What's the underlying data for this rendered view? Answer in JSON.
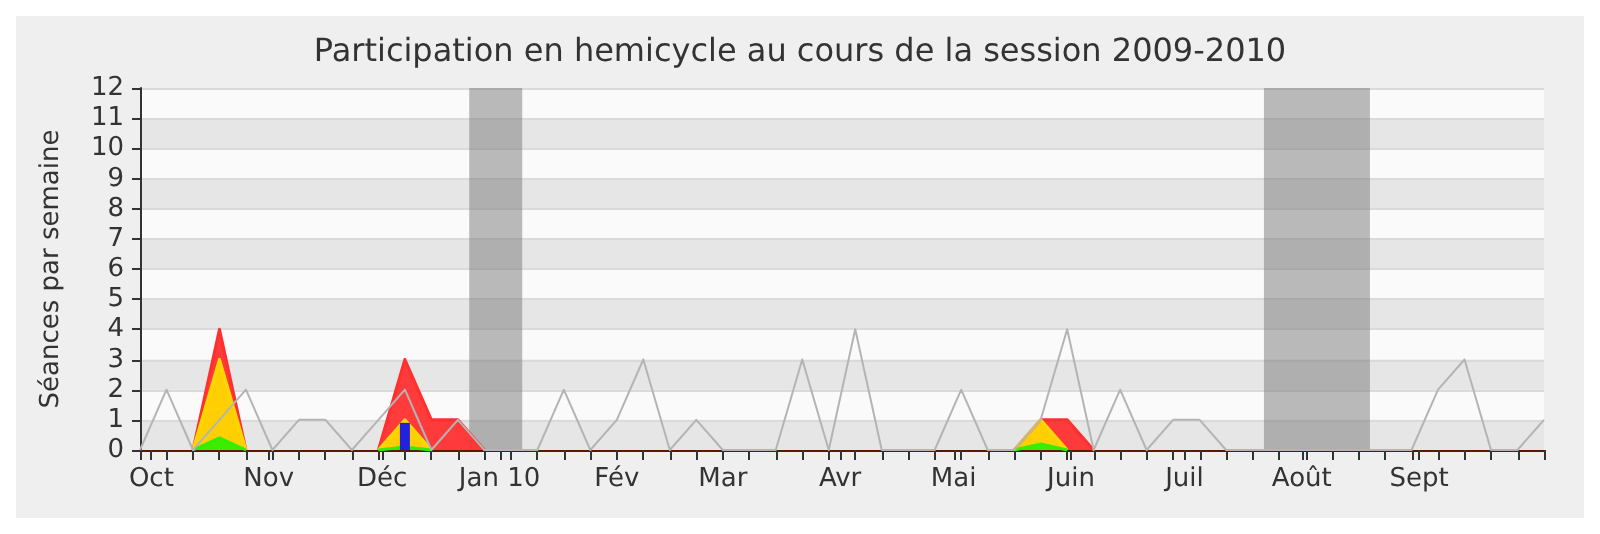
{
  "chart_data": {
    "type": "area",
    "title": "Participation en hemicycle au cours de la session 2009-2010",
    "ylabel": "Séances par semaine",
    "x": [
      "2009-09-28",
      "2009-10-05",
      "2009-10-12",
      "2009-10-19",
      "2009-10-26",
      "2009-11-02",
      "2009-11-09",
      "2009-11-16",
      "2009-11-23",
      "2009-11-30",
      "2009-12-07",
      "2009-12-14",
      "2009-12-21",
      "2009-12-28",
      "2010-01-04",
      "2010-01-11",
      "2010-01-18",
      "2010-01-25",
      "2010-02-01",
      "2010-02-08",
      "2010-02-15",
      "2010-02-22",
      "2010-03-01",
      "2010-03-08",
      "2010-03-15",
      "2010-03-22",
      "2010-03-29",
      "2010-04-05",
      "2010-04-12",
      "2010-04-19",
      "2010-04-26",
      "2010-05-03",
      "2010-05-10",
      "2010-05-17",
      "2010-05-24",
      "2010-05-31",
      "2010-06-07",
      "2010-06-14",
      "2010-06-21",
      "2010-06-28",
      "2010-07-05",
      "2010-07-12",
      "2010-07-19",
      "2010-07-26",
      "2010-08-02",
      "2010-08-09",
      "2010-08-16",
      "2010-08-23",
      "2010-08-30",
      "2010-09-06",
      "2010-09-13",
      "2010-09-20",
      "2010-09-27",
      "2010-10-04"
    ],
    "xlim": [
      "2009-09-28",
      "2010-10-04"
    ],
    "xticks": [
      {
        "value": "2009-09-28",
        "label": null
      },
      {
        "value": "2009-10-05",
        "label": null
      },
      {
        "value": "2009-10-12",
        "label": null
      },
      {
        "value": "2009-10-19",
        "label": null
      },
      {
        "value": "2009-10-26",
        "label": null
      },
      {
        "value": "2009-11-02",
        "label": null
      },
      {
        "value": "2009-11-09",
        "label": null
      },
      {
        "value": "2009-11-16",
        "label": null
      },
      {
        "value": "2009-11-23",
        "label": null
      },
      {
        "value": "2009-11-30",
        "label": null
      },
      {
        "value": "2009-12-07",
        "label": null
      },
      {
        "value": "2009-12-14",
        "label": null
      },
      {
        "value": "2009-12-21",
        "label": null
      },
      {
        "value": "2009-12-28",
        "label": null
      },
      {
        "value": "2010-01-04",
        "label": null
      },
      {
        "value": "2010-01-11",
        "label": null
      },
      {
        "value": "2010-01-18",
        "label": null
      },
      {
        "value": "2010-01-25",
        "label": null
      },
      {
        "value": "2010-02-01",
        "label": null
      },
      {
        "value": "2010-02-08",
        "label": null
      },
      {
        "value": "2010-02-15",
        "label": null
      },
      {
        "value": "2010-02-22",
        "label": null
      },
      {
        "value": "2010-03-01",
        "label": null
      },
      {
        "value": "2010-03-08",
        "label": null
      },
      {
        "value": "2010-03-15",
        "label": null
      },
      {
        "value": "2010-03-22",
        "label": null
      },
      {
        "value": "2010-03-29",
        "label": null
      },
      {
        "value": "2010-04-05",
        "label": null
      },
      {
        "value": "2010-04-12",
        "label": null
      },
      {
        "value": "2010-04-19",
        "label": null
      },
      {
        "value": "2010-04-26",
        "label": null
      },
      {
        "value": "2010-05-03",
        "label": null
      },
      {
        "value": "2010-05-10",
        "label": null
      },
      {
        "value": "2010-05-17",
        "label": null
      },
      {
        "value": "2010-05-24",
        "label": null
      },
      {
        "value": "2010-05-31",
        "label": null
      },
      {
        "value": "2010-06-07",
        "label": null
      },
      {
        "value": "2010-06-14",
        "label": null
      },
      {
        "value": "2010-06-21",
        "label": null
      },
      {
        "value": "2010-06-28",
        "label": null
      },
      {
        "value": "2010-07-05",
        "label": null
      },
      {
        "value": "2010-07-12",
        "label": null
      },
      {
        "value": "2010-07-19",
        "label": null
      },
      {
        "value": "2010-07-26",
        "label": null
      },
      {
        "value": "2010-08-02",
        "label": null
      },
      {
        "value": "2010-08-09",
        "label": null
      },
      {
        "value": "2010-08-16",
        "label": null
      },
      {
        "value": "2010-08-23",
        "label": null
      },
      {
        "value": "2010-08-30",
        "label": null
      },
      {
        "value": "2010-09-06",
        "label": null
      },
      {
        "value": "2010-09-13",
        "label": null
      },
      {
        "value": "2010-09-20",
        "label": null
      },
      {
        "value": "2010-09-27",
        "label": null
      },
      {
        "value": "2010-10-04",
        "label": null
      },
      {
        "value": "2009-10-01",
        "label": "Oct"
      },
      {
        "value": "2009-11-01",
        "label": "Nov"
      },
      {
        "value": "2009-12-01",
        "label": "Déc"
      },
      {
        "value": "2010-01-01",
        "label": "Jan 10"
      },
      {
        "value": "2010-02-01",
        "label": "Fév"
      },
      {
        "value": "2010-03-01",
        "label": "Mar"
      },
      {
        "value": "2010-04-01",
        "label": "Avr"
      },
      {
        "value": "2010-05-01",
        "label": "Mai"
      },
      {
        "value": "2010-06-01",
        "label": "Juin"
      },
      {
        "value": "2010-07-01",
        "label": "Juil"
      },
      {
        "value": "2010-08-01",
        "label": "Août"
      },
      {
        "value": "2010-09-01",
        "label": "Sept"
      }
    ],
    "ylim": [
      0,
      12
    ],
    "yticks": [
      0,
      1,
      2,
      3,
      4,
      5,
      6,
      7,
      8,
      9,
      10,
      11,
      12
    ],
    "grid": "y",
    "marker": "none",
    "bands": [
      {
        "axis": "x",
        "from": "2009-12-24",
        "to": "2010-01-07",
        "color": "#777777"
      },
      {
        "axis": "x",
        "from": "2010-07-22",
        "to": "2010-08-19",
        "color": "#777777"
      }
    ],
    "series": [
      {
        "type": "line",
        "color": "#b4b4b4",
        "values": [
          0,
          2,
          0,
          1,
          2,
          0,
          1,
          1,
          0,
          1,
          2,
          0,
          1,
          0,
          0,
          0,
          2,
          0,
          1,
          3,
          0,
          1,
          0,
          0,
          0,
          3,
          0,
          4,
          0,
          0,
          0,
          2,
          0,
          0,
          1,
          4,
          0,
          2,
          0,
          1,
          1,
          0,
          0,
          0,
          0,
          0,
          0,
          0,
          0,
          2,
          3,
          0,
          0,
          1
        ]
      },
      {
        "color": "#ff3030",
        "values": [
          null,
          null,
          0,
          4,
          0,
          null,
          null,
          null,
          null,
          0,
          3,
          1,
          1,
          0,
          null,
          null,
          null,
          null,
          null,
          null,
          null,
          null,
          null,
          null,
          null,
          null,
          null,
          null,
          null,
          null,
          null,
          null,
          null,
          0,
          1,
          1,
          0,
          null,
          null,
          null,
          null,
          null,
          null,
          null,
          null,
          null,
          null,
          null,
          null,
          null,
          null,
          null,
          null,
          null
        ]
      },
      {
        "color": "#ffd700",
        "values": [
          null,
          null,
          0,
          3,
          0,
          null,
          null,
          null,
          null,
          0,
          1,
          0,
          null,
          null,
          null,
          null,
          null,
          null,
          null,
          null,
          null,
          null,
          null,
          null,
          null,
          null,
          null,
          null,
          null,
          null,
          null,
          null,
          null,
          0,
          1,
          0,
          null,
          null,
          null,
          null,
          null,
          null,
          null,
          null,
          null,
          null,
          null,
          null,
          null,
          null,
          null,
          null,
          null,
          null
        ]
      },
      {
        "color": "#33ee00",
        "values": [
          null,
          null,
          0,
          0.4,
          0,
          null,
          null,
          null,
          null,
          0,
          0.1,
          0,
          null,
          null,
          null,
          null,
          null,
          null,
          null,
          null,
          null,
          null,
          null,
          null,
          null,
          null,
          null,
          null,
          null,
          null,
          null,
          null,
          null,
          0,
          0.2,
          0,
          null,
          null,
          null,
          null,
          null,
          null,
          null,
          null,
          null,
          null,
          null,
          null,
          null,
          null,
          null,
          null,
          null,
          null
        ]
      },
      {
        "type": "bar",
        "color": "#2222dd",
        "values": [
          null,
          null,
          null,
          null,
          null,
          null,
          null,
          null,
          null,
          null,
          0.9,
          null,
          null,
          null,
          null,
          null,
          null,
          null,
          null,
          null,
          null,
          null,
          null,
          null,
          null,
          null,
          null,
          null,
          null,
          null,
          null,
          null,
          null,
          null,
          null,
          null,
          null,
          null,
          null,
          null,
          null,
          null,
          null,
          null,
          null,
          null,
          null,
          null,
          null,
          null,
          null,
          null,
          null,
          null
        ]
      }
    ]
  }
}
